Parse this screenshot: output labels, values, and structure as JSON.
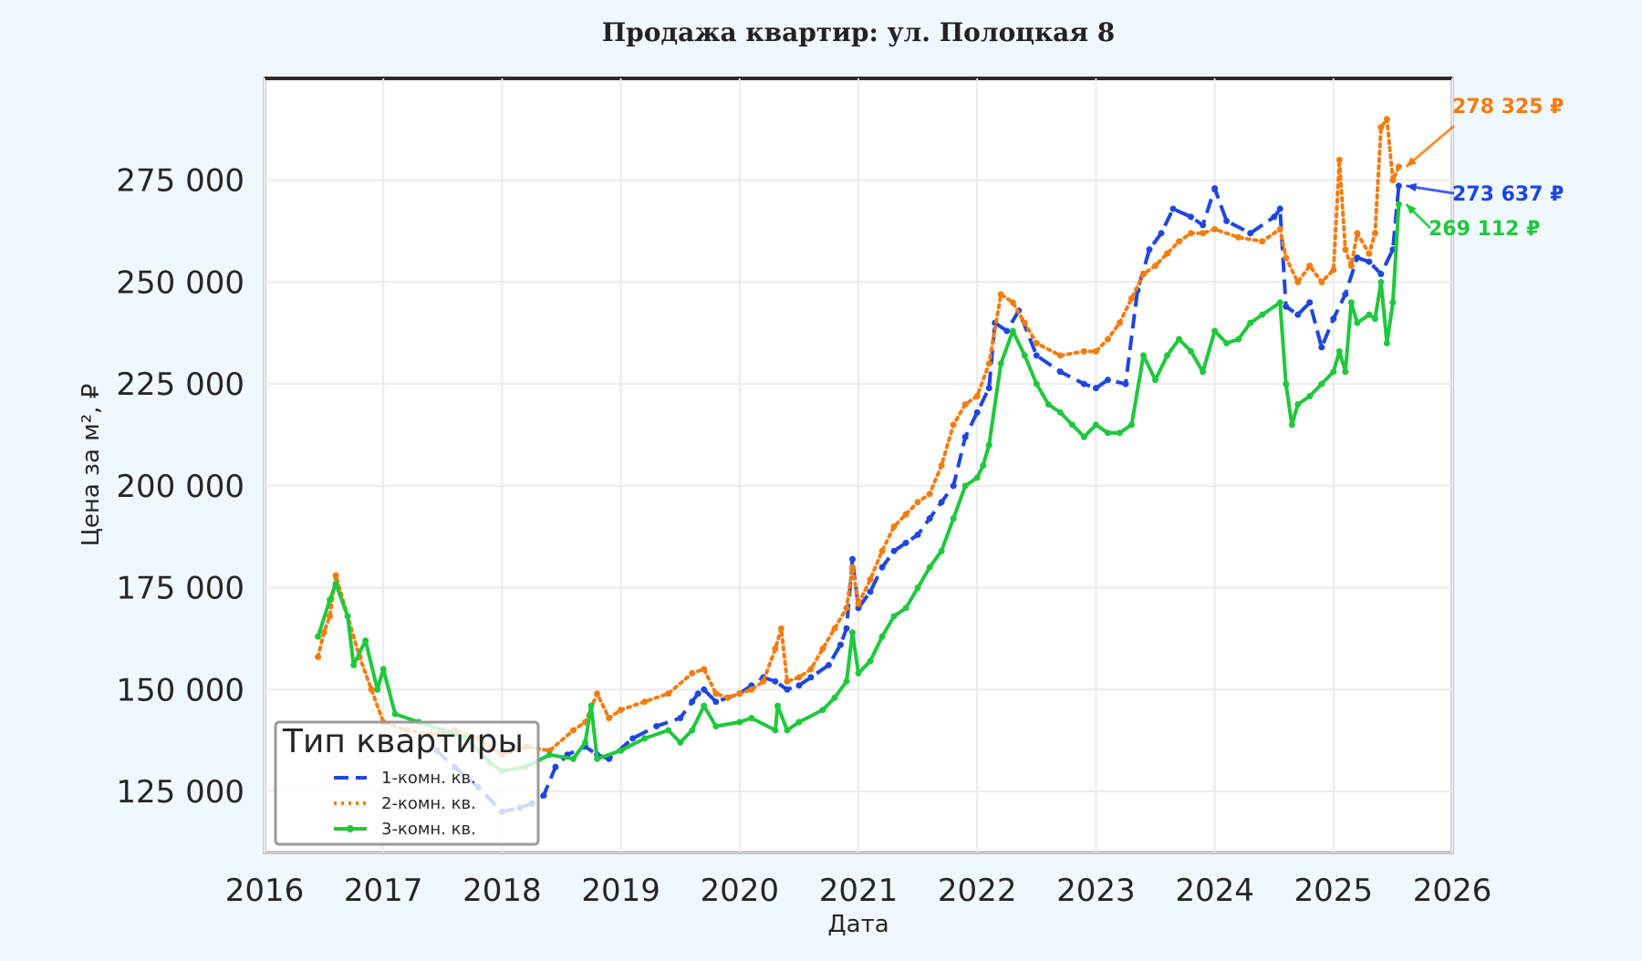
{
  "chart_data": {
    "type": "line",
    "title": "Продажа квартир: ул. Полоцкая 8",
    "xlabel": "Дата",
    "ylabel": "Цена за м², ₽",
    "xlim": [
      2016,
      2026
    ],
    "ylim": [
      110000,
      300000
    ],
    "x_ticks": [
      "2016",
      "2017",
      "2018",
      "2019",
      "2020",
      "2021",
      "2022",
      "2023",
      "2024",
      "2025",
      "2026"
    ],
    "y_ticks": [
      "125 000",
      "150 000",
      "175 000",
      "200 000",
      "225 000",
      "250 000",
      "275 000"
    ],
    "grid": true,
    "legend": {
      "title": "Тип квартиры",
      "placement": "lower-left"
    },
    "series": [
      {
        "name": "1-комн. кв.",
        "color": "#1f46e0",
        "style": "dashed",
        "x": [
          2017.45,
          2017.6,
          2017.8,
          2018.0,
          2018.15,
          2018.25,
          2018.35,
          2018.45,
          2018.55,
          2018.7,
          2018.8,
          2018.9,
          2019.1,
          2019.3,
          2019.5,
          2019.6,
          2019.65,
          2019.7,
          2019.8,
          2019.9,
          2020.0,
          2020.1,
          2020.2,
          2020.3,
          2020.4,
          2020.5,
          2020.6,
          2020.75,
          2020.85,
          2020.9,
          2020.95,
          2021.0,
          2021.1,
          2021.2,
          2021.3,
          2021.4,
          2021.5,
          2021.6,
          2021.7,
          2021.8,
          2021.9,
          2022.0,
          2022.1,
          2022.15,
          2022.25,
          2022.35,
          2022.5,
          2022.7,
          2022.9,
          2023.0,
          2023.1,
          2023.25,
          2023.35,
          2023.45,
          2023.55,
          2023.65,
          2023.8,
          2023.9,
          2024.0,
          2024.1,
          2024.3,
          2024.5,
          2024.55,
          2024.6,
          2024.7,
          2024.8,
          2024.9,
          2025.0,
          2025.1,
          2025.2,
          2025.3,
          2025.4,
          2025.5,
          2025.55
        ],
        "values": [
          135000,
          131000,
          126000,
          120000,
          121000,
          122000,
          124000,
          131000,
          134000,
          136000,
          134000,
          133000,
          138000,
          141000,
          143000,
          147000,
          149000,
          150000,
          147000,
          148000,
          149000,
          151000,
          153000,
          152000,
          150000,
          151000,
          153000,
          156000,
          161000,
          165000,
          182000,
          170000,
          174000,
          180000,
          184000,
          186000,
          188000,
          192000,
          196000,
          200000,
          212000,
          218000,
          224000,
          240000,
          238000,
          243000,
          232000,
          228000,
          225000,
          224000,
          226000,
          225000,
          248000,
          258000,
          262000,
          268000,
          266000,
          264000,
          273000,
          265000,
          262000,
          266000,
          268000,
          244000,
          242000,
          245000,
          234000,
          241000,
          247000,
          256000,
          255000,
          252000,
          258000,
          273637
        ]
      },
      {
        "name": "2-комн. кв.",
        "color": "#f57c0f",
        "style": "dotted",
        "x": [
          2016.45,
          2016.5,
          2016.55,
          2016.6,
          2016.7,
          2016.8,
          2016.9,
          2017.0,
          2017.2,
          2017.4,
          2017.6,
          2017.8,
          2018.0,
          2018.2,
          2018.4,
          2018.6,
          2018.7,
          2018.8,
          2018.9,
          2019.0,
          2019.2,
          2019.4,
          2019.6,
          2019.7,
          2019.8,
          2019.9,
          2020.0,
          2020.1,
          2020.2,
          2020.3,
          2020.35,
          2020.4,
          2020.5,
          2020.6,
          2020.7,
          2020.8,
          2020.9,
          2020.95,
          2021.0,
          2021.1,
          2021.2,
          2021.3,
          2021.4,
          2021.5,
          2021.6,
          2021.7,
          2021.8,
          2021.9,
          2022.0,
          2022.1,
          2022.2,
          2022.3,
          2022.4,
          2022.5,
          2022.7,
          2022.9,
          2023.0,
          2023.1,
          2023.2,
          2023.3,
          2023.4,
          2023.5,
          2023.6,
          2023.7,
          2023.8,
          2023.9,
          2024.0,
          2024.2,
          2024.4,
          2024.55,
          2024.6,
          2024.7,
          2024.8,
          2024.9,
          2025.0,
          2025.05,
          2025.1,
          2025.15,
          2025.2,
          2025.3,
          2025.35,
          2025.4,
          2025.45,
          2025.5,
          2025.55
        ],
        "values": [
          158000,
          164000,
          168000,
          178000,
          168000,
          158000,
          150000,
          142000,
          140000,
          139000,
          140000,
          138000,
          134000,
          136000,
          135000,
          140000,
          142000,
          149000,
          143000,
          145000,
          147000,
          149000,
          154000,
          155000,
          149000,
          148000,
          149000,
          150000,
          152000,
          160000,
          165000,
          152000,
          153000,
          155000,
          160000,
          165000,
          170000,
          180000,
          171000,
          177000,
          184000,
          190000,
          193000,
          196000,
          198000,
          205000,
          215000,
          220000,
          222000,
          230000,
          247000,
          245000,
          240000,
          235000,
          232000,
          233000,
          233000,
          236000,
          240000,
          246000,
          252000,
          254000,
          257000,
          260000,
          262000,
          262000,
          263000,
          261000,
          260000,
          263000,
          256000,
          250000,
          254000,
          250000,
          253000,
          280000,
          258000,
          254000,
          262000,
          257000,
          262000,
          288000,
          290000,
          275000,
          278325
        ]
      },
      {
        "name": "3-комн. кв.",
        "color": "#1fc83c",
        "style": "solid",
        "x": [
          2016.45,
          2016.55,
          2016.6,
          2016.7,
          2016.75,
          2016.85,
          2016.95,
          2017.0,
          2017.1,
          2017.3,
          2017.5,
          2017.7,
          2017.9,
          2018.0,
          2018.2,
          2018.4,
          2018.6,
          2018.7,
          2018.75,
          2018.8,
          2019.0,
          2019.2,
          2019.4,
          2019.5,
          2019.6,
          2019.7,
          2019.8,
          2020.0,
          2020.1,
          2020.3,
          2020.32,
          2020.4,
          2020.5,
          2020.7,
          2020.8,
          2020.9,
          2020.95,
          2021.0,
          2021.1,
          2021.2,
          2021.3,
          2021.4,
          2021.5,
          2021.6,
          2021.7,
          2021.8,
          2021.9,
          2022.0,
          2022.05,
          2022.1,
          2022.2,
          2022.3,
          2022.4,
          2022.5,
          2022.6,
          2022.7,
          2022.8,
          2022.9,
          2023.0,
          2023.1,
          2023.2,
          2023.3,
          2023.4,
          2023.5,
          2023.6,
          2023.7,
          2023.8,
          2023.9,
          2024.0,
          2024.1,
          2024.2,
          2024.3,
          2024.4,
          2024.55,
          2024.6,
          2024.65,
          2024.7,
          2024.8,
          2024.9,
          2025.0,
          2025.05,
          2025.1,
          2025.15,
          2025.2,
          2025.3,
          2025.35,
          2025.4,
          2025.45,
          2025.5,
          2025.55
        ],
        "values": [
          163000,
          172000,
          176000,
          168000,
          156000,
          162000,
          150000,
          155000,
          144000,
          142000,
          140000,
          138000,
          132000,
          130000,
          131000,
          134000,
          133000,
          137000,
          146000,
          133000,
          135000,
          138000,
          140000,
          137000,
          140000,
          146000,
          141000,
          142000,
          143000,
          140000,
          146000,
          140000,
          142000,
          145000,
          148000,
          152000,
          164000,
          154000,
          157000,
          163000,
          168000,
          170000,
          175000,
          180000,
          184000,
          192000,
          200000,
          202000,
          205000,
          210000,
          230000,
          238000,
          232000,
          225000,
          220000,
          218000,
          215000,
          212000,
          215000,
          213000,
          213000,
          215000,
          232000,
          226000,
          232000,
          236000,
          233000,
          228000,
          238000,
          235000,
          236000,
          240000,
          242000,
          245000,
          225000,
          215000,
          220000,
          222000,
          225000,
          228000,
          233000,
          228000,
          245000,
          240000,
          242000,
          241000,
          250000,
          235000,
          245000,
          269112
        ]
      }
    ],
    "annotations": [
      {
        "text": "278 325 ₽",
        "color": "#f57c0f",
        "target_x": 2025.55,
        "target_y": 278325,
        "label_x": 2026.0,
        "label_y": 291500
      },
      {
        "text": "273 637 ₽",
        "color": "#1f46e0",
        "target_x": 2025.55,
        "target_y": 273637,
        "label_x": 2026.0,
        "label_y": 270000
      },
      {
        "text": "269 112 ₽",
        "color": "#1fc83c",
        "target_x": 2025.55,
        "target_y": 269112,
        "label_x": 2025.8,
        "label_y": 261500
      }
    ]
  }
}
